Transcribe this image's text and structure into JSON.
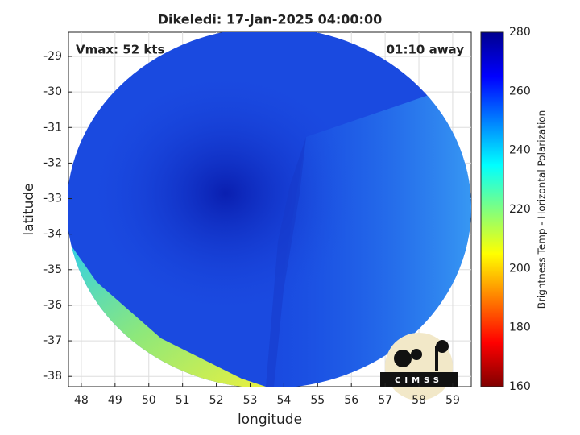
{
  "chart_data": {
    "type": "image",
    "title": "Dikeledi: 17-Jan-2025 04:00:00",
    "annotations": [
      "Vmax: 52 kts",
      "01:10 away"
    ],
    "x_label": "longitude",
    "y_label": "latitude",
    "xlim": [
      47.62,
      59.55
    ],
    "xticks": [
      48,
      49,
      50,
      51,
      52,
      53,
      54,
      55,
      56,
      57,
      58,
      59
    ],
    "ylim": [
      -38.29,
      -28.32
    ],
    "yticks": [
      -29,
      -30,
      -31,
      -32,
      -33,
      -34,
      -35,
      -36,
      -37,
      -38
    ],
    "grid": true,
    "colorbar": {
      "label": "Brightness Temp - Horizontal Polarization",
      "lim": [
        160,
        280
      ],
      "ticks": [
        160,
        180,
        200,
        220,
        240,
        260,
        280
      ]
    },
    "logo": "CIMSS"
  }
}
